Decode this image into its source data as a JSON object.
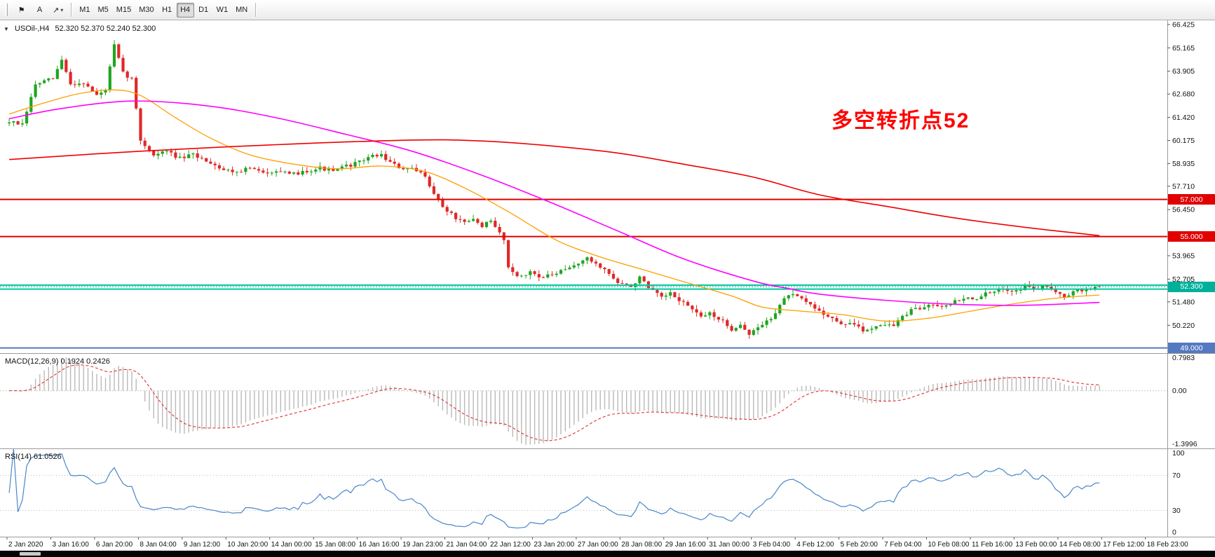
{
  "toolbar": {
    "tools": [
      {
        "name": "flag-marker-tool",
        "glyph": "⚑"
      },
      {
        "name": "text-tool",
        "glyph": "A"
      },
      {
        "name": "arrow-objects-dropdown",
        "glyph": "↗",
        "caret": "▾"
      }
    ],
    "timeframes": [
      "M1",
      "M5",
      "M15",
      "M30",
      "H1",
      "H4",
      "D1",
      "W1",
      "MN"
    ],
    "active_timeframe": "H4"
  },
  "chart": {
    "collapse_icon": "▼",
    "symbol": "USOil-,H4",
    "ohlc": "52.320 52.370 52.240 52.300",
    "annotation": {
      "text": "多空转折点52",
      "color": "#fe0000"
    }
  },
  "price_scale": {
    "labels": [
      "66.425",
      "65.165",
      "63.905",
      "62.680",
      "61.420",
      "60.175",
      "58.935",
      "57.710",
      "56.450",
      "53.965",
      "52.705",
      "51.480",
      "50.220"
    ],
    "tags": [
      {
        "text": "57.000",
        "price": 57.0,
        "bg": "#e00000"
      },
      {
        "text": "55.000",
        "price": 55.0,
        "bg": "#e00000"
      },
      {
        "text": "52.300",
        "price": 52.3,
        "bg": "#00b09b"
      },
      {
        "text": "49.000",
        "price": 49.0,
        "bg": "#5479c1"
      }
    ]
  },
  "hlines": [
    {
      "price": 57.0,
      "color": "#e00000",
      "width": 2,
      "dash": ""
    },
    {
      "price": 55.0,
      "color": "#e00000",
      "width": 2,
      "dash": ""
    },
    {
      "price": 52.38,
      "color": "#00c89b",
      "width": 2,
      "dash": ""
    },
    {
      "price": 52.17,
      "color": "#00c89b",
      "width": 2,
      "dash": ""
    },
    {
      "price": 52.3,
      "color": "#00b09b",
      "width": 1,
      "dash": "2 2"
    },
    {
      "price": 49.0,
      "color": "#5479c1",
      "width": 2,
      "dash": ""
    }
  ],
  "indicators": {
    "macd": {
      "label": "MACD(12,26,9) 0.1924 0.2426",
      "fast": 12,
      "slow": 26,
      "signal": 9,
      "value": 0.1924,
      "signal_value": 0.2426,
      "scale_top": "0.7983",
      "scale_zero": "0.00",
      "scale_bottom": "-1.3996",
      "histogram_color": "#b9b9b9",
      "signal_color": "#e03030"
    },
    "rsi": {
      "label": "RSI(14) 61.0526",
      "period": 14,
      "value": 61.0526,
      "color": "#4a86c8",
      "levels": [
        70,
        30
      ],
      "scale_labels": [
        "100",
        "70",
        "30",
        "0"
      ]
    }
  },
  "time_axis": [
    "2 Jan 2020",
    "3 Jan 16:00",
    "6 Jan 20:00",
    "8 Jan 04:00",
    "9 Jan 12:00",
    "10 Jan 20:00",
    "14 Jan 00:00",
    "15 Jan 08:00",
    "16 Jan 16:00",
    "19 Jan 23:00",
    "21 Jan 04:00",
    "22 Jan 12:00",
    "23 Jan 20:00",
    "27 Jan 00:00",
    "28 Jan 08:00",
    "29 Jan 16:00",
    "31 Jan 00:00",
    "3 Feb 04:00",
    "4 Feb 12:00",
    "5 Feb 20:00",
    "7 Feb 04:00",
    "10 Feb 08:00",
    "11 Feb 16:00",
    "13 Feb 00:00",
    "14 Feb 08:00",
    "17 Feb 12:00",
    "18 Feb 23:00"
  ],
  "chart_data": {
    "type": "candlestick",
    "symbol": "USOil",
    "timeframe": "H4",
    "bars": 250,
    "time_slots": 265,
    "seed": 7,
    "ylim": [
      48.72,
      66.65
    ],
    "up_color": "#1fa51f",
    "down_color": "#e02828",
    "last_bar_ohlc": [
      52.32,
      52.37,
      52.24,
      52.3
    ],
    "price_path": [
      [
        0,
        61.2
      ],
      [
        3,
        61.0
      ],
      [
        6,
        63.2
      ],
      [
        10,
        63.5
      ],
      [
        12,
        64.5
      ],
      [
        14,
        63.2
      ],
      [
        17,
        63.3
      ],
      [
        20,
        62.6
      ],
      [
        22,
        62.9
      ],
      [
        24,
        65.3
      ],
      [
        26,
        63.8
      ],
      [
        28,
        63.5
      ],
      [
        30,
        60.2
      ],
      [
        33,
        59.4
      ],
      [
        36,
        59.6
      ],
      [
        39,
        59.2
      ],
      [
        42,
        59.4
      ],
      [
        46,
        59.0
      ],
      [
        49,
        58.6
      ],
      [
        52,
        58.5
      ],
      [
        55,
        58.7
      ],
      [
        58,
        58.4
      ],
      [
        61,
        58.6
      ],
      [
        64,
        58.3
      ],
      [
        67,
        58.5
      ],
      [
        71,
        58.7
      ],
      [
        74,
        58.5
      ],
      [
        77,
        58.8
      ],
      [
        80,
        59.0
      ],
      [
        82,
        59.3
      ],
      [
        85,
        59.4
      ],
      [
        87,
        59.0
      ],
      [
        89,
        58.7
      ],
      [
        92,
        58.6
      ],
      [
        95,
        58.3
      ],
      [
        97,
        57.3
      ],
      [
        99,
        56.6
      ],
      [
        102,
        56.0
      ],
      [
        104,
        55.7
      ],
      [
        106,
        55.9
      ],
      [
        108,
        55.6
      ],
      [
        110,
        55.8
      ],
      [
        113,
        54.9
      ],
      [
        114,
        53.3
      ],
      [
        117,
        52.8
      ],
      [
        119,
        53.1
      ],
      [
        122,
        52.8
      ],
      [
        125,
        53.0
      ],
      [
        128,
        53.3
      ],
      [
        130,
        53.6
      ],
      [
        132,
        53.8
      ],
      [
        135,
        53.4
      ],
      [
        137,
        53.0
      ],
      [
        139,
        52.5
      ],
      [
        142,
        52.3
      ],
      [
        144,
        52.8
      ],
      [
        146,
        52.2
      ],
      [
        149,
        51.7
      ],
      [
        151,
        51.9
      ],
      [
        153,
        51.6
      ],
      [
        156,
        51.1
      ],
      [
        158,
        50.6
      ],
      [
        160,
        50.9
      ],
      [
        163,
        50.4
      ],
      [
        165,
        50.0
      ],
      [
        167,
        50.3
      ],
      [
        169,
        49.7
      ],
      [
        171,
        50.1
      ],
      [
        174,
        50.6
      ],
      [
        176,
        51.3
      ],
      [
        178,
        51.9
      ],
      [
        181,
        51.6
      ],
      [
        183,
        51.3
      ],
      [
        185,
        51.0
      ],
      [
        188,
        50.6
      ],
      [
        190,
        50.2
      ],
      [
        192,
        50.4
      ],
      [
        195,
        49.9
      ],
      [
        197,
        50.1
      ],
      [
        199,
        50.3
      ],
      [
        202,
        50.2
      ],
      [
        204,
        50.7
      ],
      [
        206,
        51.0
      ],
      [
        209,
        51.2
      ],
      [
        211,
        51.4
      ],
      [
        213,
        51.3
      ],
      [
        216,
        51.5
      ],
      [
        218,
        51.7
      ],
      [
        220,
        51.6
      ],
      [
        223,
        51.9
      ],
      [
        225,
        52.0
      ],
      [
        227,
        52.2
      ],
      [
        230,
        52.1
      ],
      [
        232,
        52.3
      ],
      [
        234,
        52.2
      ],
      [
        237,
        52.3
      ],
      [
        239,
        52.1
      ],
      [
        241,
        51.8
      ],
      [
        243,
        52.0
      ],
      [
        246,
        52.15
      ],
      [
        249,
        52.3
      ]
    ],
    "moving_averages": [
      {
        "name": "ma-fast-orange",
        "color": "#ff9d00",
        "width": 1.3,
        "points": [
          [
            0,
            61.6
          ],
          [
            8,
            62.2
          ],
          [
            16,
            62.7
          ],
          [
            24,
            62.9
          ],
          [
            30,
            62.6
          ],
          [
            38,
            61.4
          ],
          [
            46,
            60.3
          ],
          [
            55,
            59.4
          ],
          [
            65,
            58.9
          ],
          [
            75,
            58.65
          ],
          [
            85,
            58.8
          ],
          [
            95,
            58.5
          ],
          [
            105,
            57.5
          ],
          [
            115,
            56.2
          ],
          [
            125,
            54.8
          ],
          [
            135,
            53.9
          ],
          [
            145,
            53.2
          ],
          [
            155,
            52.5
          ],
          [
            165,
            51.8
          ],
          [
            172,
            51.2
          ],
          [
            180,
            51.0
          ],
          [
            190,
            50.8
          ],
          [
            200,
            50.45
          ],
          [
            210,
            50.6
          ],
          [
            220,
            51.0
          ],
          [
            230,
            51.4
          ],
          [
            240,
            51.7
          ],
          [
            249,
            51.85
          ]
        ]
      },
      {
        "name": "ma-medium-magenta",
        "color": "#ff00ff",
        "width": 1.6,
        "points": [
          [
            0,
            61.35
          ],
          [
            12,
            61.9
          ],
          [
            28,
            62.3
          ],
          [
            45,
            62.05
          ],
          [
            61,
            61.4
          ],
          [
            77,
            60.5
          ],
          [
            92,
            59.6
          ],
          [
            108,
            58.3
          ],
          [
            123,
            56.9
          ],
          [
            139,
            55.3
          ],
          [
            154,
            53.8
          ],
          [
            170,
            52.6
          ],
          [
            178,
            52.2
          ],
          [
            185,
            51.9
          ],
          [
            201,
            51.55
          ],
          [
            216,
            51.35
          ],
          [
            232,
            51.3
          ],
          [
            249,
            51.45
          ]
        ]
      },
      {
        "name": "ma-slow-red",
        "color": "#ee0000",
        "width": 1.6,
        "points": [
          [
            0,
            59.15
          ],
          [
            30,
            59.6
          ],
          [
            61,
            59.95
          ],
          [
            92,
            60.2
          ],
          [
            108,
            60.15
          ],
          [
            123,
            59.9
          ],
          [
            139,
            59.5
          ],
          [
            154,
            58.9
          ],
          [
            170,
            58.2
          ],
          [
            185,
            57.25
          ],
          [
            201,
            56.6
          ],
          [
            216,
            56.0
          ],
          [
            232,
            55.5
          ],
          [
            249,
            55.05
          ]
        ]
      }
    ]
  }
}
